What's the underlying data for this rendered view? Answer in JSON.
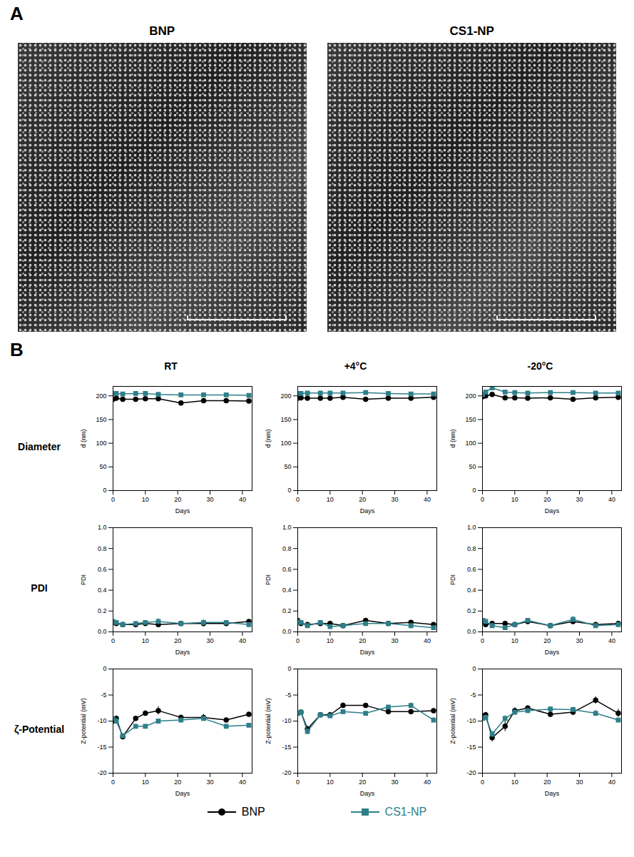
{
  "panel_labels": [
    "A",
    "B"
  ],
  "images": [
    {
      "title": "BNP"
    },
    {
      "title": "CS1-NP"
    }
  ],
  "columns": [
    "RT",
    "+4°C",
    "-20°C"
  ],
  "rows": [
    "Diameter",
    "PDI",
    "ζ-Potential"
  ],
  "chart_data": [
    {
      "type": "line",
      "x_label": "Days",
      "y_label": "d (nm)",
      "x": [
        0,
        1,
        3,
        7,
        10,
        14,
        21,
        28,
        35,
        42
      ],
      "xlim": [
        0,
        43
      ],
      "xticks": [
        0,
        10,
        20,
        30,
        40
      ],
      "ylim": [
        0,
        220
      ],
      "yticks": [
        0,
        50,
        100,
        150,
        200
      ],
      "series": [
        {
          "name": "BNP",
          "color": "#000000",
          "marker": "circle",
          "values": [
            193,
            195,
            193,
            193,
            194,
            194,
            185,
            190,
            190,
            189
          ],
          "errors": [
            2,
            2,
            2,
            2,
            2,
            2,
            4,
            2,
            2,
            2
          ]
        },
        {
          "name": "CS1-NP",
          "color": "#2e7f8a",
          "marker": "square",
          "values": [
            205,
            205,
            204,
            205,
            205,
            203,
            202,
            202,
            202,
            201
          ],
          "errors": [
            2,
            2,
            2,
            2,
            2,
            2,
            2,
            2,
            2,
            2
          ]
        }
      ]
    },
    {
      "type": "line",
      "x_label": "Days",
      "y_label": "d (nm)",
      "x": [
        0,
        1,
        3,
        7,
        10,
        14,
        21,
        28,
        35,
        42
      ],
      "xlim": [
        0,
        43
      ],
      "xticks": [
        0,
        10,
        20,
        30,
        40
      ],
      "ylim": [
        0,
        220
      ],
      "yticks": [
        0,
        50,
        100,
        150,
        200
      ],
      "series": [
        {
          "name": "BNP",
          "color": "#000000",
          "marker": "circle",
          "values": [
            195,
            196,
            195,
            195,
            195,
            197,
            193,
            195,
            195,
            197
          ],
          "errors": [
            2,
            2,
            2,
            2,
            2,
            2,
            2,
            2,
            2,
            2
          ]
        },
        {
          "name": "CS1-NP",
          "color": "#2e7f8a",
          "marker": "square",
          "values": [
            205,
            205,
            206,
            206,
            206,
            206,
            207,
            205,
            204,
            204
          ],
          "errors": [
            2,
            2,
            2,
            2,
            2,
            2,
            2,
            2,
            2,
            2
          ]
        }
      ]
    },
    {
      "type": "line",
      "x_label": "Days",
      "y_label": "d (nm)",
      "x": [
        0,
        1,
        3,
        7,
        10,
        14,
        21,
        28,
        35,
        42
      ],
      "xlim": [
        0,
        43
      ],
      "xticks": [
        0,
        10,
        20,
        30,
        40
      ],
      "ylim": [
        0,
        220
      ],
      "yticks": [
        0,
        50,
        100,
        150,
        200
      ],
      "series": [
        {
          "name": "BNP",
          "color": "#000000",
          "marker": "circle",
          "values": [
            198,
            200,
            203,
            196,
            196,
            195,
            196,
            193,
            196,
            197
          ],
          "errors": [
            3,
            2,
            2,
            2,
            2,
            2,
            2,
            2,
            2,
            2
          ]
        },
        {
          "name": "CS1-NP",
          "color": "#2e7f8a",
          "marker": "square",
          "values": [
            203,
            208,
            217,
            208,
            207,
            206,
            207,
            207,
            206,
            206
          ],
          "errors": [
            3,
            2,
            2,
            2,
            2,
            2,
            2,
            2,
            2,
            2
          ]
        }
      ]
    },
    {
      "type": "line",
      "x_label": "Days",
      "y_label": "PDI",
      "x": [
        0,
        1,
        3,
        7,
        10,
        14,
        21,
        28,
        35,
        42
      ],
      "xlim": [
        0,
        43
      ],
      "xticks": [
        0,
        10,
        20,
        30,
        40
      ],
      "ylim": [
        0,
        1
      ],
      "yticks": [
        {
          "value": 0,
          "label": "0.0"
        },
        0.2,
        0.4,
        0.6,
        0.8,
        {
          "value": 1,
          "label": "1.0"
        }
      ],
      "series": [
        {
          "name": "BNP",
          "color": "#000000",
          "marker": "circle",
          "values": [
            0.09,
            0.08,
            0.07,
            0.07,
            0.08,
            0.07,
            0.08,
            0.08,
            0.08,
            0.1
          ],
          "errors": [
            0.02,
            0.02,
            0.02,
            0.02,
            0.02,
            0.02,
            0.02,
            0.03,
            0.02,
            0.01
          ]
        },
        {
          "name": "CS1-NP",
          "color": "#2e7f8a",
          "marker": "square",
          "values": [
            0.1,
            0.09,
            0.07,
            0.08,
            0.09,
            0.1,
            0.08,
            0.09,
            0.09,
            0.07
          ],
          "errors": [
            0.02,
            0.02,
            0.02,
            0.02,
            0.02,
            0.03,
            0.02,
            0.03,
            0.02,
            0.01
          ]
        }
      ]
    },
    {
      "type": "line",
      "x_label": "Days",
      "y_label": "PDI",
      "x": [
        0,
        1,
        3,
        7,
        10,
        14,
        21,
        28,
        35,
        42
      ],
      "xlim": [
        0,
        43
      ],
      "xticks": [
        0,
        10,
        20,
        30,
        40
      ],
      "ylim": [
        0,
        1
      ],
      "yticks": [
        {
          "value": 0,
          "label": "0.0"
        },
        0.2,
        0.4,
        0.6,
        0.8,
        {
          "value": 1,
          "label": "1.0"
        }
      ],
      "series": [
        {
          "name": "BNP",
          "color": "#000000",
          "marker": "circle",
          "values": [
            0.11,
            0.08,
            0.07,
            0.08,
            0.08,
            0.06,
            0.11,
            0.08,
            0.09,
            0.07
          ],
          "errors": [
            0.02,
            0.02,
            0.02,
            0.02,
            0.02,
            0.01,
            0.01,
            0.02,
            0.01,
            0.01
          ]
        },
        {
          "name": "CS1-NP",
          "color": "#2e7f8a",
          "marker": "square",
          "values": [
            0.1,
            0.09,
            0.06,
            0.09,
            0.05,
            0.06,
            0.08,
            0.08,
            0.06,
            0.04
          ],
          "errors": [
            0.02,
            0.02,
            0.02,
            0.02,
            0.01,
            0.01,
            0.01,
            0.02,
            0.01,
            0.01
          ]
        }
      ]
    },
    {
      "type": "line",
      "x_label": "Days",
      "y_label": "PDI",
      "x": [
        0,
        1,
        3,
        7,
        10,
        14,
        21,
        28,
        35,
        42
      ],
      "xlim": [
        0,
        43
      ],
      "xticks": [
        0,
        10,
        20,
        30,
        40
      ],
      "ylim": [
        0,
        1
      ],
      "yticks": [
        {
          "value": 0,
          "label": "0.0"
        },
        0.2,
        0.4,
        0.6,
        0.8,
        {
          "value": 1,
          "label": "1.0"
        }
      ],
      "series": [
        {
          "name": "BNP",
          "color": "#000000",
          "marker": "circle",
          "values": [
            0.1,
            0.07,
            0.08,
            0.08,
            0.07,
            0.1,
            0.06,
            0.1,
            0.07,
            0.08
          ],
          "errors": [
            0.03,
            0.02,
            0.02,
            0.02,
            0.02,
            0.02,
            0.01,
            0.02,
            0.02,
            0.01
          ]
        },
        {
          "name": "CS1-NP",
          "color": "#2e7f8a",
          "marker": "square",
          "values": [
            0.11,
            0.1,
            0.06,
            0.04,
            0.07,
            0.11,
            0.06,
            0.12,
            0.06,
            0.07
          ],
          "errors": [
            0.03,
            0.03,
            0.02,
            0.02,
            0.02,
            0.02,
            0.01,
            0.03,
            0.02,
            0.01
          ]
        }
      ]
    },
    {
      "type": "line",
      "x_label": "Days",
      "y_label": "Z-potential (mV)",
      "x": [
        0,
        1,
        3,
        7,
        10,
        14,
        21,
        28,
        35,
        42
      ],
      "xlim": [
        0,
        43
      ],
      "xticks": [
        0,
        10,
        20,
        30,
        40
      ],
      "ylim": [
        -20,
        0
      ],
      "yticks": [
        -20,
        -15,
        -10,
        -5,
        0
      ],
      "series": [
        {
          "name": "BNP",
          "color": "#000000",
          "marker": "circle",
          "values": [
            -10,
            -9.5,
            -13,
            -9.5,
            -8.5,
            -8,
            -9.3,
            -9.3,
            -9.8,
            -8.7
          ],
          "errors": [
            0.6,
            0.5,
            0.4,
            0.4,
            0.5,
            0.8,
            0.5,
            0.6,
            0.4,
            0.3
          ]
        },
        {
          "name": "CS1-NP",
          "color": "#2e7f8a",
          "marker": "square",
          "values": [
            -9.5,
            -10,
            -12.8,
            -11,
            -11,
            -10,
            -9.8,
            -9.5,
            -11,
            -10.8
          ],
          "errors": [
            0.5,
            0.5,
            0.4,
            0.4,
            0.4,
            0.4,
            0.4,
            0.5,
            0.4,
            0.4
          ]
        }
      ]
    },
    {
      "type": "line",
      "x_label": "Days",
      "y_label": "Z-potential (mV)",
      "x": [
        0,
        1,
        3,
        7,
        10,
        14,
        21,
        28,
        35,
        42
      ],
      "xlim": [
        0,
        43
      ],
      "xticks": [
        0,
        10,
        20,
        30,
        40
      ],
      "ylim": [
        -20,
        0
      ],
      "yticks": [
        -20,
        -15,
        -10,
        -5,
        0
      ],
      "series": [
        {
          "name": "BNP",
          "color": "#000000",
          "marker": "circle",
          "values": [
            -8.5,
            -8.3,
            -11.5,
            -8.8,
            -8.8,
            -7,
            -7,
            -8.2,
            -8.2,
            -8
          ],
          "errors": [
            0.4,
            0.4,
            0.5,
            0.3,
            0.3,
            0.5,
            0.3,
            0.3,
            0.3,
            0.4
          ]
        },
        {
          "name": "CS1-NP",
          "color": "#2e7f8a",
          "marker": "square",
          "values": [
            -8.5,
            -8.3,
            -12,
            -8.8,
            -9,
            -8.2,
            -8.5,
            -7.3,
            -7,
            -9.8
          ],
          "errors": [
            0.4,
            0.4,
            0.6,
            0.3,
            0.4,
            0.3,
            0.3,
            0.3,
            0.5,
            0.5
          ]
        }
      ]
    },
    {
      "type": "line",
      "x_label": "Days",
      "y_label": "Z-potential (mV)",
      "x": [
        0,
        1,
        3,
        7,
        10,
        14,
        21,
        28,
        35,
        42
      ],
      "xlim": [
        0,
        43
      ],
      "xticks": [
        0,
        10,
        20,
        30,
        40
      ],
      "ylim": [
        -20,
        0
      ],
      "yticks": [
        -20,
        -15,
        -10,
        -5,
        0
      ],
      "series": [
        {
          "name": "BNP",
          "color": "#000000",
          "marker": "circle",
          "values": [
            -9,
            -8.8,
            -13.2,
            -11,
            -8,
            -7.5,
            -8.7,
            -8.3,
            -6,
            -8.5
          ],
          "errors": [
            0.6,
            0.5,
            0.8,
            1,
            0.6,
            0.5,
            0.6,
            0.6,
            0.7,
            0.8
          ]
        },
        {
          "name": "CS1-NP",
          "color": "#2e7f8a",
          "marker": "square",
          "values": [
            -9.5,
            -9.3,
            -12.5,
            -9.5,
            -8.3,
            -8,
            -7.7,
            -7.8,
            -8.5,
            -9.8
          ],
          "errors": [
            0.5,
            0.5,
            0.6,
            0.6,
            0.6,
            0.5,
            0.5,
            0.5,
            0.6,
            0.4
          ]
        }
      ]
    }
  ]
}
